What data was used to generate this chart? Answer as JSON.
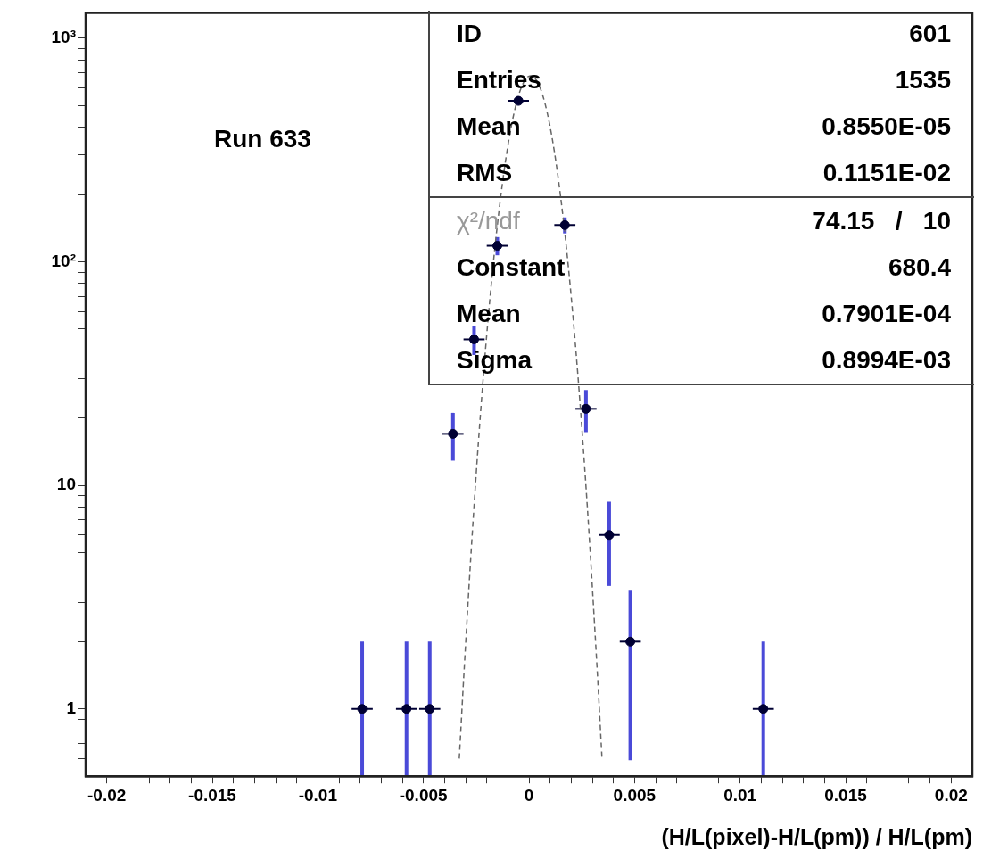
{
  "chart_data": {
    "type": "scatter",
    "xlabel": "(H/L(pixel)-H/L(pm)) / H/L(pm)",
    "log": "y",
    "grid": false,
    "legend": false,
    "xlim": [
      -0.021,
      0.021
    ],
    "ylim": [
      0.5,
      1300
    ],
    "xticks": [
      -0.02,
      {
        "value": -0.019,
        "label": null
      },
      {
        "value": -0.018,
        "label": null
      },
      {
        "value": -0.017,
        "label": null
      },
      {
        "value": -0.016,
        "label": null
      },
      -0.015,
      {
        "value": -0.014,
        "label": null
      },
      {
        "value": -0.013,
        "label": null
      },
      {
        "value": -0.012,
        "label": null
      },
      {
        "value": -0.011,
        "label": null
      },
      -0.01,
      {
        "value": -0.009,
        "label": null
      },
      {
        "value": -0.008,
        "label": null
      },
      {
        "value": -0.007,
        "label": null
      },
      {
        "value": -0.006,
        "label": null
      },
      -0.005,
      {
        "value": -0.004,
        "label": null
      },
      {
        "value": -0.003,
        "label": null
      },
      {
        "value": -0.002,
        "label": null
      },
      {
        "value": -0.001,
        "label": null
      },
      0,
      {
        "value": 0.001,
        "label": null
      },
      {
        "value": 0.002,
        "label": null
      },
      {
        "value": 0.003,
        "label": null
      },
      {
        "value": 0.004,
        "label": null
      },
      0.005,
      {
        "value": 0.006,
        "label": null
      },
      {
        "value": 0.007,
        "label": null
      },
      {
        "value": 0.008,
        "label": null
      },
      {
        "value": 0.009,
        "label": null
      },
      0.01,
      {
        "value": 0.011,
        "label": null
      },
      {
        "value": 0.012,
        "label": null
      },
      {
        "value": 0.013,
        "label": null
      },
      {
        "value": 0.014,
        "label": null
      },
      0.015,
      {
        "value": 0.016,
        "label": null
      },
      {
        "value": 0.017,
        "label": null
      },
      {
        "value": 0.018,
        "label": null
      },
      {
        "value": 0.019,
        "label": null
      },
      0.02
    ],
    "yticks": [
      {
        "value": 0.6,
        "label": null
      },
      {
        "value": 0.7,
        "label": null
      },
      {
        "value": 0.8,
        "label": null
      },
      {
        "value": 0.9,
        "label": null
      },
      1,
      {
        "value": 2,
        "label": null
      },
      {
        "value": 3,
        "label": null
      },
      {
        "value": 4,
        "label": null
      },
      {
        "value": 5,
        "label": null
      },
      {
        "value": 6,
        "label": null
      },
      {
        "value": 7,
        "label": null
      },
      {
        "value": 8,
        "label": null
      },
      {
        "value": 9,
        "label": null
      },
      10,
      {
        "value": 20,
        "label": null
      },
      {
        "value": 30,
        "label": null
      },
      {
        "value": 40,
        "label": null
      },
      {
        "value": 50,
        "label": null
      },
      {
        "value": 60,
        "label": null
      },
      {
        "value": 70,
        "label": null
      },
      {
        "value": 80,
        "label": null
      },
      {
        "value": 90,
        "label": null
      },
      {
        "value": 100,
        "label": "10²"
      },
      {
        "value": 200,
        "label": null
      },
      {
        "value": 300,
        "label": null
      },
      {
        "value": 400,
        "label": null
      },
      {
        "value": 500,
        "label": null
      },
      {
        "value": 600,
        "label": null
      },
      {
        "value": 700,
        "label": null
      },
      {
        "value": 800,
        "label": null
      },
      {
        "value": 900,
        "label": null
      },
      {
        "value": 1000,
        "label": "10³"
      }
    ],
    "series": [
      {
        "type": "scatter",
        "color": "#000033",
        "marker": "circle",
        "x": [
          -0.0079,
          -0.0058,
          -0.0047,
          -0.0036,
          -0.0026,
          -0.0015,
          -0.0005,
          0.0017,
          0.0027,
          0.0038,
          0.0048,
          0.0111
        ],
        "values": [
          1,
          1,
          1,
          17,
          45,
          118,
          525,
          146,
          22,
          6,
          2,
          1
        ],
        "errors": [
          [
            0.5,
            2
          ],
          [
            0.5,
            2
          ],
          [
            0.5,
            2
          ],
          [
            12.9,
            21.1
          ],
          [
            38.3,
            51.7
          ],
          [
            107,
            129
          ],
          null,
          [
            134,
            158
          ],
          [
            17.3,
            26.7
          ],
          [
            3.55,
            8.45
          ],
          [
            0.59,
            3.41
          ],
          [
            0.5,
            2
          ]
        ],
        "xerrors": [
          0.0005,
          0.0005,
          0.0005,
          0.0005,
          0.0005,
          0.0005,
          0.0005,
          0.0005,
          0.0005,
          0.0005,
          0.0005,
          0.0005
        ]
      },
      {
        "type": "line",
        "color": "#666666",
        "marker": "none",
        "line_style": "dashed",
        "x": [
          -0.0033,
          -0.00307,
          -0.00262,
          -0.00217,
          -0.00172,
          -0.00127,
          -0.00082,
          -0.00037,
          8e-05,
          0.00053,
          0.00098,
          0.00143,
          0.00188,
          0.00233,
          0.00278,
          0.00323,
          0.00346
        ],
        "values": [
          0.6,
          1.5,
          7.6,
          30,
          92,
          220,
          412,
          600,
          680,
          600,
          412,
          220,
          92,
          30,
          7.6,
          1.5,
          0.6
        ]
      }
    ],
    "annotations": [
      "Run 633",
      "ID",
      "601",
      "Entries",
      "1535",
      "Mean",
      "0.8550E-05",
      "RMS",
      "0.1151E-02",
      "χ²/ndf",
      "74.15   /   10",
      "Constant",
      "680.4",
      "Mean",
      "0.7901E-04",
      "Sigma",
      "0.8994E-03"
    ]
  }
}
